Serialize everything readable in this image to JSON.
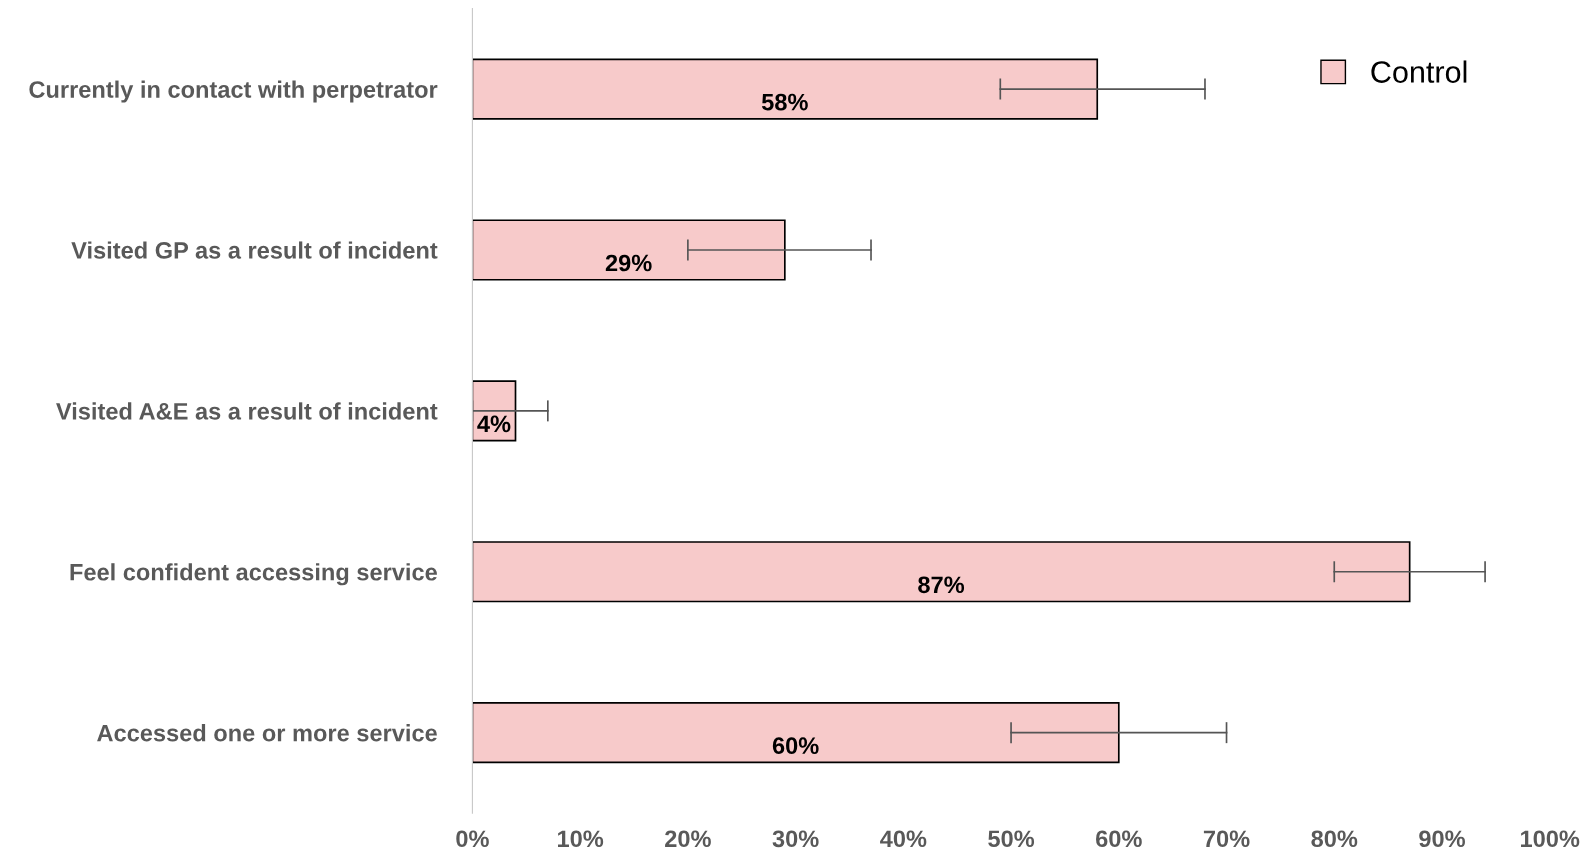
{
  "chart_data": {
    "type": "bar",
    "orientation": "horizontal",
    "categories": [
      "Currently in contact with perpetrator",
      "Visited GP as a result of incident",
      "Visited A&E as a result of incident",
      "Feel confident accessing service",
      "Accessed one or more service"
    ],
    "series": [
      {
        "name": "Control",
        "color": "#f7caca",
        "values": [
          58,
          29,
          4,
          87,
          60
        ],
        "errors": [
          [
            49,
            68
          ],
          [
            20,
            37
          ],
          [
            0,
            7
          ],
          [
            80,
            94
          ],
          [
            50,
            70
          ]
        ]
      }
    ],
    "value_labels": [
      "58%",
      "29%",
      "4%",
      "87%",
      "60%"
    ],
    "xlim": [
      0,
      100
    ],
    "xticks": [
      {
        "value": 0,
        "label": "0%"
      },
      {
        "value": 10,
        "label": "10%"
      },
      {
        "value": 20,
        "label": "20%"
      },
      {
        "value": 30,
        "label": "30%"
      },
      {
        "value": 40,
        "label": "40%"
      },
      {
        "value": 50,
        "label": "50%"
      },
      {
        "value": 60,
        "label": "60%"
      },
      {
        "value": 70,
        "label": "70%"
      },
      {
        "value": 80,
        "label": "80%"
      },
      {
        "value": 90,
        "label": "90%"
      },
      {
        "value": 100,
        "label": "100%"
      }
    ],
    "grid": false,
    "legend": "top right"
  }
}
